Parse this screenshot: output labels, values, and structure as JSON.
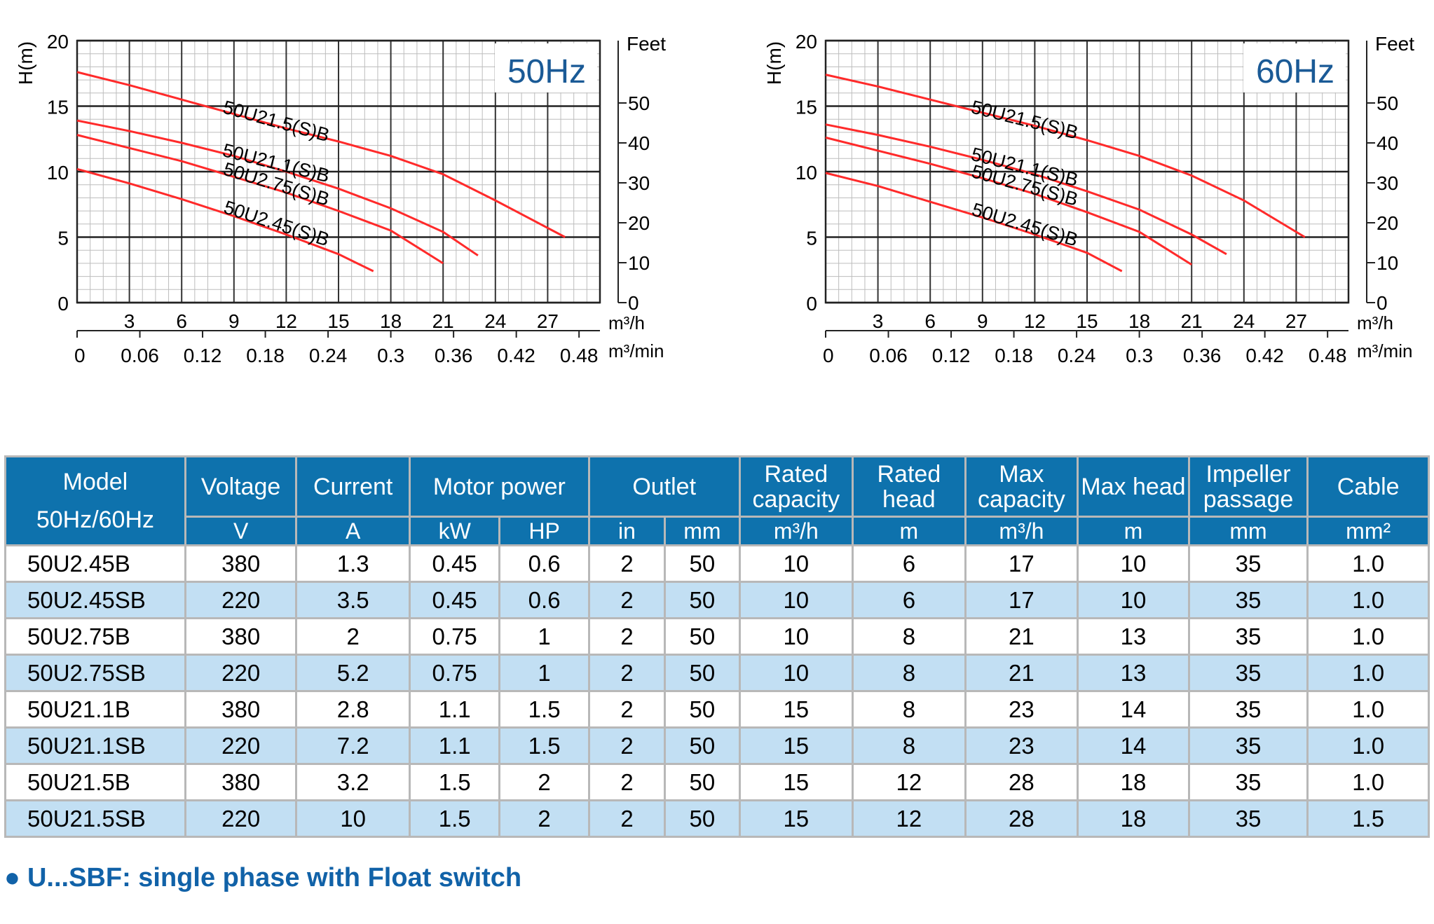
{
  "chart_data": [
    {
      "type": "line",
      "title": "50Hz",
      "ylabel": "H(m)",
      "y2label": "Feet",
      "xlabel": "m³/h",
      "x2label": "m³/min",
      "xlim": [
        0,
        30
      ],
      "ylim": [
        0,
        20
      ],
      "xticks": [
        3,
        6,
        9,
        12,
        15,
        18,
        21,
        24,
        27
      ],
      "yticks": [
        0,
        5,
        10,
        15,
        20
      ],
      "y2ticks": [
        0,
        10,
        20,
        30,
        40,
        50
      ],
      "x2ticks": [
        "0",
        "0.06",
        "0.12",
        "0.18",
        "0.24",
        "0.3",
        "0.36",
        "0.42",
        "0.48"
      ],
      "grid": true,
      "series": [
        {
          "name": "50U21.5(S)B",
          "x": [
            0,
            3,
            6,
            9,
            12,
            15,
            18,
            21,
            24,
            28
          ],
          "y": [
            17.6,
            16.6,
            15.5,
            14.4,
            13.3,
            12.3,
            11.2,
            9.8,
            7.8,
            5
          ]
        },
        {
          "name": "50U21.1(S)B",
          "x": [
            0,
            3,
            6,
            9,
            12,
            15,
            18,
            21,
            23
          ],
          "y": [
            13.9,
            13.1,
            12.2,
            11.2,
            10.0,
            8.7,
            7.2,
            5.4,
            3.6
          ]
        },
        {
          "name": "50U2.75(S)B",
          "x": [
            0,
            3,
            6,
            9,
            12,
            15,
            18,
            21
          ],
          "y": [
            12.8,
            11.8,
            10.8,
            9.6,
            8.4,
            7.0,
            5.5,
            3.0
          ]
        },
        {
          "name": "50U2.45(S)B",
          "x": [
            0,
            3,
            6,
            9,
            12,
            15,
            17
          ],
          "y": [
            10.2,
            9.1,
            7.9,
            6.6,
            5.2,
            3.7,
            2.4
          ]
        }
      ]
    },
    {
      "type": "line",
      "title": "60Hz",
      "ylabel": "H(m)",
      "y2label": "Feet",
      "xlabel": "m³/h",
      "x2label": "m³/min",
      "xlim": [
        0,
        30
      ],
      "ylim": [
        0,
        20
      ],
      "xticks": [
        3,
        6,
        9,
        12,
        15,
        18,
        21,
        24,
        27
      ],
      "yticks": [
        0,
        5,
        10,
        15,
        20
      ],
      "y2ticks": [
        0,
        10,
        20,
        30,
        40,
        50
      ],
      "x2ticks": [
        "0",
        "0.06",
        "0.12",
        "0.18",
        "0.24",
        "0.3",
        "0.36",
        "0.42",
        "0.48"
      ],
      "grid": true,
      "series": [
        {
          "name": "50U21.5(S)B",
          "x": [
            0,
            3,
            6,
            9,
            12,
            15,
            18,
            21,
            24,
            27.5
          ],
          "y": [
            17.4,
            16.5,
            15.5,
            14.5,
            13.5,
            12.4,
            11.2,
            9.7,
            7.8,
            5
          ]
        },
        {
          "name": "50U21.1(S)B",
          "x": [
            0,
            3,
            6,
            9,
            12,
            15,
            18,
            21,
            23
          ],
          "y": [
            13.6,
            12.8,
            11.9,
            10.9,
            9.8,
            8.5,
            7.1,
            5.2,
            3.7
          ]
        },
        {
          "name": "50U2.75(S)B",
          "x": [
            0,
            3,
            6,
            9,
            12,
            15,
            18,
            21
          ],
          "y": [
            12.6,
            11.6,
            10.6,
            9.5,
            8.3,
            6.9,
            5.4,
            2.9
          ]
        },
        {
          "name": "50U2.45(S)B",
          "x": [
            0,
            3,
            6,
            9,
            12,
            15,
            17
          ],
          "y": [
            9.9,
            8.9,
            7.7,
            6.5,
            5.2,
            3.8,
            2.4
          ]
        }
      ]
    }
  ],
  "table": {
    "headers": {
      "model": "Model",
      "model_sub": "50Hz/60Hz",
      "voltage": "Voltage",
      "current": "Current",
      "motor_power": "Motor power",
      "outlet": "Outlet",
      "rated_capacity": "Rated capacity",
      "rated_head": "Rated head",
      "max_capacity": "Max capacity",
      "max_head": "Max head",
      "impeller_passage": "Impeller passage",
      "cable": "Cable"
    },
    "units": [
      "V",
      "A",
      "kW",
      "HP",
      "in",
      "mm",
      "m³/h",
      "m",
      "m³/h",
      "m",
      "mm",
      "mm²"
    ],
    "rows": [
      [
        "50U2.45B",
        "380",
        "1.3",
        "0.45",
        "0.6",
        "2",
        "50",
        "10",
        "6",
        "17",
        "10",
        "35",
        "1.0"
      ],
      [
        "50U2.45SB",
        "220",
        "3.5",
        "0.45",
        "0.6",
        "2",
        "50",
        "10",
        "6",
        "17",
        "10",
        "35",
        "1.0"
      ],
      [
        "50U2.75B",
        "380",
        "2",
        "0.75",
        "1",
        "2",
        "50",
        "10",
        "8",
        "21",
        "13",
        "35",
        "1.0"
      ],
      [
        "50U2.75SB",
        "220",
        "5.2",
        "0.75",
        "1",
        "2",
        "50",
        "10",
        "8",
        "21",
        "13",
        "35",
        "1.0"
      ],
      [
        "50U21.1B",
        "380",
        "2.8",
        "1.1",
        "1.5",
        "2",
        "50",
        "15",
        "8",
        "23",
        "14",
        "35",
        "1.0"
      ],
      [
        "50U21.1SB",
        "220",
        "7.2",
        "1.1",
        "1.5",
        "2",
        "50",
        "15",
        "8",
        "23",
        "14",
        "35",
        "1.0"
      ],
      [
        "50U21.5B",
        "380",
        "3.2",
        "1.5",
        "2",
        "2",
        "50",
        "15",
        "12",
        "28",
        "18",
        "35",
        "1.0"
      ],
      [
        "50U21.5SB",
        "220",
        "10",
        "1.5",
        "2",
        "2",
        "50",
        "15",
        "12",
        "28",
        "18",
        "35",
        "1.5"
      ]
    ]
  },
  "footnote": {
    "bullet": "●",
    "text": "U...SBF: single phase with Float switch"
  },
  "colors": {
    "curve": "#ff2a2a",
    "header_bg": "#0e72ad",
    "row_alt_bg": "#c2dff3",
    "title": "#1a5a96",
    "footnote": "#1162a8"
  }
}
